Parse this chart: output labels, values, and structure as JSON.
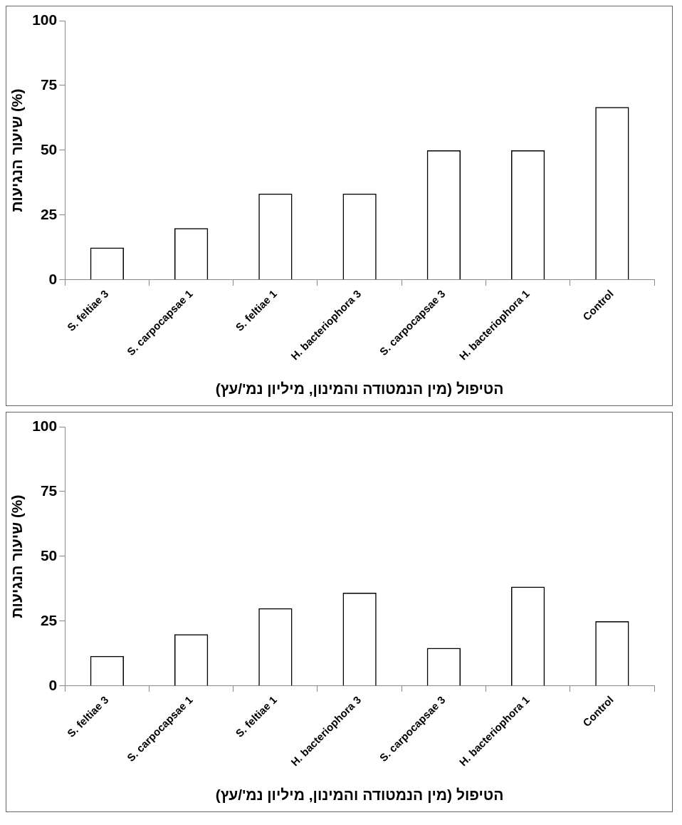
{
  "chart_data": [
    {
      "type": "bar",
      "xlabel": "הטיפול (מין הנמטודה והמינון, מיליון נמ'/עץ)",
      "ylabel": "שיעור הנגיעות (%)",
      "categories": [
        "S. feltiae 3",
        "S. carpocapsae 1",
        "S. feltiae 1",
        "H. bacteriophora 3",
        "S. carpocapsae 3",
        "H. bacteriophora 1",
        "Control"
      ],
      "values": [
        12.5,
        20,
        33.3,
        33.3,
        50,
        50,
        66.7
      ],
      "color": "#000000",
      "ylim": [
        0,
        100
      ],
      "yticks": [
        0,
        25,
        50,
        75,
        100
      ],
      "grid": false,
      "legend": false
    },
    {
      "type": "bar",
      "xlabel": "הטיפול (מין הנמטודה והמינון, מיליון נמ'/עץ)",
      "ylabel": "שיעור הנגיעות (%)",
      "categories": [
        "S. feltiae 3",
        "S. carpocapsae 1",
        "S. feltiae 1",
        "H. bacteriophora 3",
        "S. carpocapsae 3",
        "H. bacteriophora 1",
        "Control"
      ],
      "values": [
        11.6,
        20,
        30,
        36,
        14.7,
        38.3,
        25
      ],
      "color": "#000000",
      "ylim": [
        0,
        100
      ],
      "yticks": [
        0,
        25,
        50,
        75,
        100
      ],
      "grid": false,
      "legend": false
    }
  ]
}
